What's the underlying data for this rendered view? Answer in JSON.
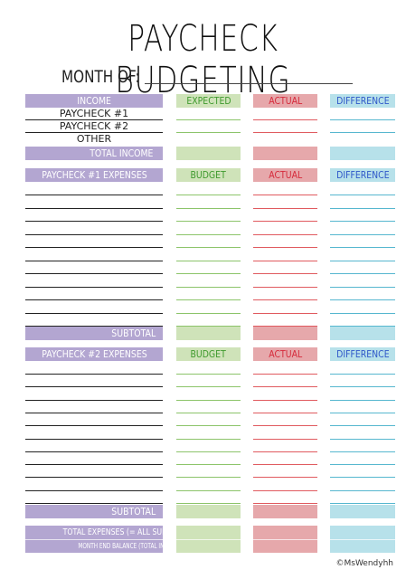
{
  "title": "PAYCHECK BUDGETING",
  "month_label": "MONTH OF:",
  "income": {
    "header": "INCOME",
    "col_expected": "EXPECTED",
    "col_actual": "ACTUAL",
    "col_difference": "DIFFERENCE",
    "rows": [
      "PAYCHECK #1",
      "PAYCHECK #2",
      "OTHER"
    ],
    "total": "TOTAL INCOME"
  },
  "section1": {
    "header": "PAYCHECK #1 EXPENSES",
    "col_budget": "BUDGET",
    "col_actual": "ACTUAL",
    "col_difference": "DIFFERENCE",
    "subtotal": "SUBTOTAL"
  },
  "section2": {
    "header": "PAYCHECK #2 EXPENSES",
    "col_budget": "BUDGET",
    "col_actual": "ACTUAL",
    "col_difference": "DIFFERENCE",
    "subtotal": "SUBTOTAL"
  },
  "summary": {
    "total_expenses": "TOTAL EXPENSES (= ALL SUBTOTALS)",
    "month_end": "MONTH END BALANCE (TOTAL INCOME - EXPENSES)"
  },
  "copyright": "©MsWendyhh",
  "colors": {
    "purple": "#b3a6d1",
    "green": "#cfe3b9",
    "pink": "#e6a8ab",
    "blue": "#b7e1ea"
  }
}
